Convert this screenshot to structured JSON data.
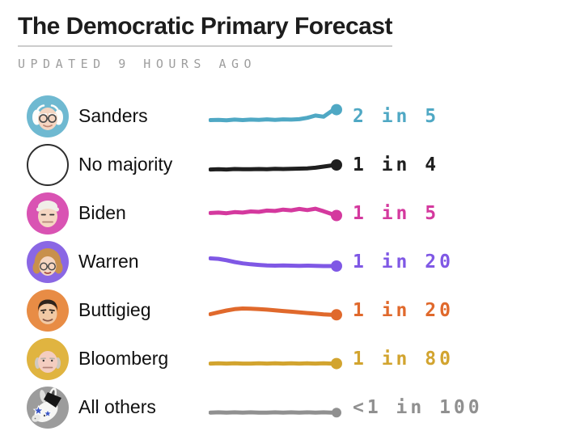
{
  "header": {
    "title": "The Democratic Primary Forecast",
    "updated": "UPDATED 9 HOURS AGO"
  },
  "ui_colors": {
    "title_text": "#1D1D1D",
    "title_underline": "#CCCCCC",
    "updated_text": "#9E9E9E",
    "name_text": "#101010",
    "background": "#FFFFFF"
  },
  "chart_data": {
    "type": "line",
    "title": "The Democratic Primary Forecast",
    "subtitle": "UPDATED 9 HOURS AGO",
    "legend_position": "none",
    "grid": false,
    "description": "Seven sparkline rows showing each candidate's chance of winning a majority of pledged delegates over time, ending in a dot, with current odds printed at right. Trend values are normalized 0-1 vertical positions read from the drawn lines.",
    "rows": [
      {
        "name": "Sanders",
        "odds": "2 in 5",
        "color": "#4FA8C4",
        "avatar": "sanders",
        "avatar_bg": "#6FB9D1",
        "trend": [
          0.34,
          0.35,
          0.33,
          0.36,
          0.34,
          0.36,
          0.35,
          0.37,
          0.35,
          0.37,
          0.36,
          0.38,
          0.44,
          0.54,
          0.49,
          0.74
        ],
        "dot": 0.8
      },
      {
        "name": "No majority",
        "odds": "1 in 4",
        "color": "#1F1F1F",
        "avatar": "none",
        "avatar_bg": "#FFFFFF",
        "trend": [
          0.3,
          0.31,
          0.3,
          0.32,
          0.31,
          0.31,
          0.32,
          0.31,
          0.33,
          0.32,
          0.33,
          0.34,
          0.35,
          0.38,
          0.43,
          0.48
        ],
        "dot": 0.5
      },
      {
        "name": "Biden",
        "odds": "1 in 5",
        "color": "#D4399E",
        "avatar": "biden",
        "avatar_bg": "#D953B3",
        "trend": [
          0.52,
          0.54,
          0.51,
          0.56,
          0.54,
          0.59,
          0.57,
          0.63,
          0.61,
          0.67,
          0.64,
          0.7,
          0.65,
          0.71,
          0.6,
          0.48
        ],
        "dot": 0.41
      },
      {
        "name": "Warren",
        "odds": "1 in 20",
        "color": "#7F58E5",
        "avatar": "warren",
        "avatar_bg": "#8A67E4",
        "trend": [
          0.66,
          0.64,
          0.58,
          0.5,
          0.44,
          0.4,
          0.37,
          0.35,
          0.34,
          0.35,
          0.34,
          0.33,
          0.34,
          0.33,
          0.32,
          0.32
        ],
        "dot": 0.32
      },
      {
        "name": "Buttigieg",
        "odds": "1 in 20",
        "color": "#E0692C",
        "avatar": "buttigieg",
        "avatar_bg": "#E88C45",
        "trend": [
          0.34,
          0.42,
          0.5,
          0.56,
          0.59,
          0.58,
          0.56,
          0.54,
          0.51,
          0.48,
          0.45,
          0.42,
          0.39,
          0.36,
          0.33,
          0.31
        ],
        "dot": 0.31
      },
      {
        "name": "Bloomberg",
        "odds": "1 in 80",
        "color": "#D2A42F",
        "avatar": "bloomberg",
        "avatar_bg": "#E0B440",
        "trend": [
          0.3,
          0.31,
          0.3,
          0.31,
          0.3,
          0.3,
          0.31,
          0.3,
          0.31,
          0.3,
          0.31,
          0.3,
          0.31,
          0.3,
          0.31,
          0.3
        ],
        "dot": 0.3
      },
      {
        "name": "All others",
        "odds": "<1 in 100",
        "color": "#909090",
        "avatar": "donkey",
        "avatar_bg": "#9C9C9C",
        "trend": [
          0.28,
          0.29,
          0.28,
          0.29,
          0.28,
          0.29,
          0.28,
          0.28,
          0.29,
          0.28,
          0.29,
          0.28,
          0.29,
          0.28,
          0.29,
          0.28
        ],
        "dot": 0.28
      }
    ]
  }
}
